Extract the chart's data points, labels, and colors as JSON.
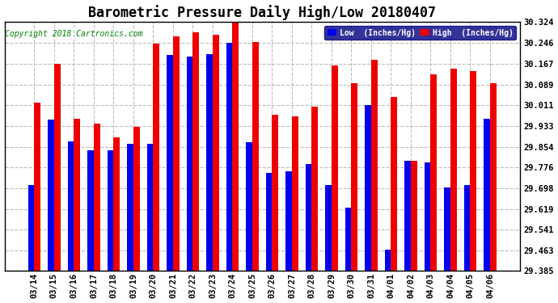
{
  "title": "Barometric Pressure Daily High/Low 20180407",
  "copyright": "Copyright 2018 Cartronics.com",
  "legend_low": "Low  (Inches/Hg)",
  "legend_high": "High  (Inches/Hg)",
  "dates": [
    "03/14",
    "03/15",
    "03/16",
    "03/17",
    "03/18",
    "03/19",
    "03/20",
    "03/21",
    "03/22",
    "03/23",
    "03/24",
    "03/25",
    "03/26",
    "03/27",
    "03/28",
    "03/29",
    "03/30",
    "03/31",
    "04/01",
    "04/02",
    "04/03",
    "04/04",
    "04/05",
    "04/06"
  ],
  "low": [
    29.71,
    29.955,
    29.875,
    29.84,
    29.84,
    29.865,
    29.865,
    30.2,
    30.195,
    30.205,
    30.245,
    29.87,
    29.755,
    29.76,
    29.79,
    29.71,
    29.625,
    30.01,
    29.465,
    29.8,
    29.795,
    29.7,
    29.71,
    29.96
  ],
  "high": [
    30.02,
    30.168,
    29.96,
    29.94,
    29.89,
    29.928,
    30.242,
    30.27,
    30.285,
    30.278,
    30.338,
    30.248,
    29.975,
    29.968,
    30.005,
    30.16,
    30.095,
    30.182,
    30.042,
    29.8,
    30.128,
    30.15,
    30.14,
    30.095
  ],
  "ylim_min": 29.385,
  "ylim_max": 30.324,
  "yticks": [
    29.385,
    29.463,
    29.541,
    29.619,
    29.698,
    29.776,
    29.854,
    29.933,
    30.011,
    30.089,
    30.167,
    30.246,
    30.324
  ],
  "bar_width": 0.32,
  "low_color": "#0000ee",
  "high_color": "#ee0000",
  "bg_color": "#ffffff",
  "grid_color": "#bbbbbb",
  "title_fontsize": 12,
  "tick_fontsize": 7.5,
  "copyright_fontsize": 7
}
